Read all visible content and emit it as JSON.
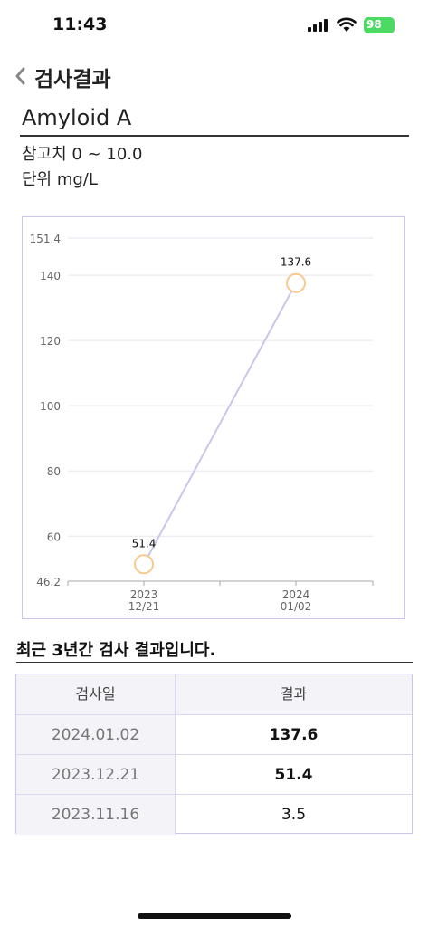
{
  "status_bar": {
    "time": "11:43",
    "battery": "98"
  },
  "nav": {
    "title": "검사결과"
  },
  "test": {
    "name": "Amyloid A",
    "reference_range": "참고치 0 ~ 10.0",
    "unit": "단위 mg/L"
  },
  "chart_data": {
    "type": "line",
    "categories": [
      [
        "2023",
        "12/21"
      ],
      [
        "2024",
        "01/02"
      ]
    ],
    "values": [
      51.4,
      137.6
    ],
    "ylim": [
      46.2,
      151.4
    ],
    "yticks": [
      46.2,
      60,
      80,
      100,
      120,
      140,
      151.4
    ],
    "grid": true,
    "colors": {
      "line": "#c9c6ec",
      "marker": "#f7c98f",
      "grid": "#e6e6ee"
    }
  },
  "recent": {
    "title": "최근 3년간 검사 결과입니다."
  },
  "table": {
    "headers": [
      "검사일",
      "결과"
    ],
    "rows": [
      {
        "date": "2024.01.02",
        "value": "137.6",
        "bold": true
      },
      {
        "date": "2023.12.21",
        "value": "51.4",
        "bold": true
      },
      {
        "date": "2023.11.16",
        "value": "3.5",
        "bold": false
      }
    ]
  }
}
